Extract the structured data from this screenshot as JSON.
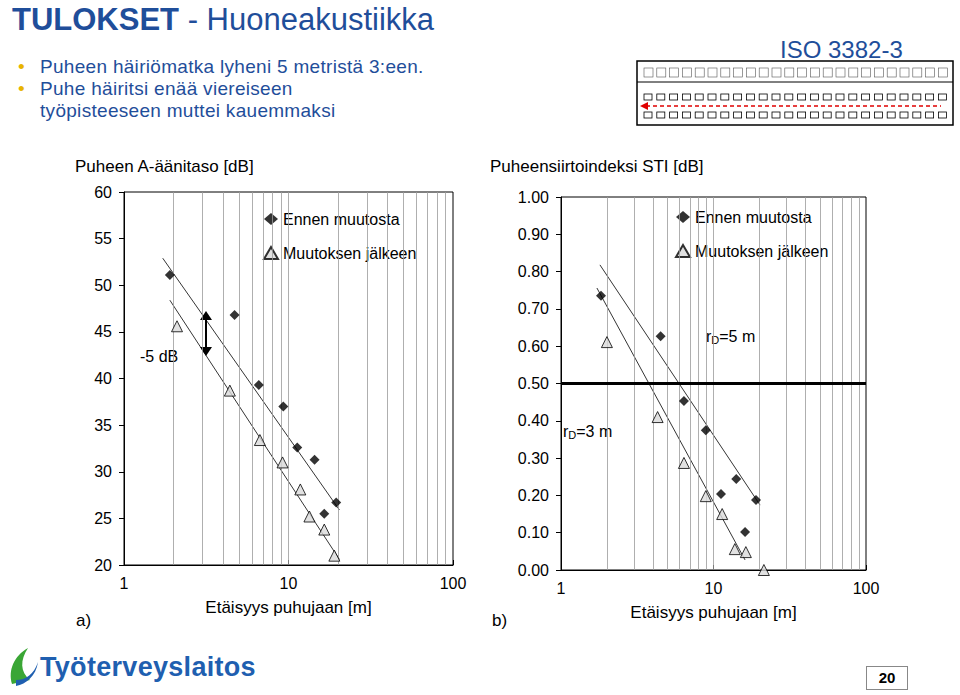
{
  "slide": {
    "title": "TULOKSET",
    "subtitle": "- Huoneakustiikka",
    "bullets": [
      "Puheen häiriömatka lyheni 5 metristä 3:een.",
      "Puhe häiritsi enää viereiseen työpisteeseen muttei kauemmaksi"
    ],
    "standard": "ISO 3382-3",
    "logo": "Työterveyslaitos",
    "page": "20"
  },
  "chart_data": [
    {
      "type": "scatter",
      "panel_label": "a)",
      "xlabel": "Etäisyys puhujaan [m]",
      "ylabel": "Puheen A-äänitaso [dB]",
      "log": "x",
      "xlim": [
        1,
        100
      ],
      "xticks": [
        1,
        10,
        100
      ],
      "ylim": [
        20,
        60
      ],
      "yticks": [
        20,
        25,
        30,
        35,
        40,
        45,
        50,
        55,
        60
      ],
      "grid": true,
      "legend": "upper right",
      "annotations": [
        {
          "text": "-5 dB"
        }
      ],
      "series": [
        {
          "name": "Ennen muutosta",
          "color": "#000000",
          "marker": "diamond",
          "x": [
            1.9,
            4.7,
            6.6,
            9.3,
            11.3,
            14.4,
            16.5,
            19.5
          ],
          "values": [
            51.1,
            46.8,
            39.3,
            37.0,
            32.6,
            31.3,
            25.5,
            26.7
          ],
          "fit_line": {
            "x": [
              1.72,
              20.4
            ],
            "values": [
              52.9,
              25.9
            ]
          }
        },
        {
          "name": "Muutoksen jälkeen",
          "color": "#d9d9d9",
          "marker": "triangle",
          "x": [
            2.1,
            4.4,
            6.7,
            9.2,
            11.8,
            13.4,
            16.5,
            19.0
          ],
          "values": [
            45.6,
            38.7,
            33.4,
            31.0,
            28.1,
            25.2,
            23.8,
            21.0
          ],
          "fit_line": {
            "x": [
              1.9,
              20.4
            ],
            "values": [
              48.4,
              20.6
            ]
          }
        }
      ]
    },
    {
      "type": "scatter",
      "panel_label": "b)",
      "xlabel": "Etäisyys puhujaan [m]",
      "ylabel": "Puheensiirtoindeksi STI [dB]",
      "log": "x",
      "xlim": [
        1,
        100
      ],
      "xticks": [
        1,
        10,
        100
      ],
      "ylim": [
        0,
        1
      ],
      "yticks": [
        {
          "value": 0,
          "label": "0.00"
        },
        {
          "value": 0.1,
          "label": "0.10"
        },
        {
          "value": 0.2,
          "label": "0.20"
        },
        {
          "value": 0.3,
          "label": "0.30"
        },
        {
          "value": 0.4,
          "label": "0.40"
        },
        {
          "value": 0.5,
          "label": "0.50"
        },
        {
          "value": 0.6,
          "label": "0.60"
        },
        {
          "value": 0.7,
          "label": "0.70"
        },
        {
          "value": 0.8,
          "label": "0.80"
        },
        {
          "value": 0.9,
          "label": "0.90"
        },
        {
          "value": 1,
          "label": "1.00"
        }
      ],
      "grid": true,
      "legend": "upper right",
      "reference_line": 0.5,
      "annotations": [
        {
          "text": "r",
          "subscript": "D",
          "suffix": "=5 m"
        },
        {
          "text": "r",
          "subscript": "D",
          "suffix": "=3 m"
        }
      ],
      "series": [
        {
          "name": "Ennen muutosta",
          "color": "#000000",
          "marker": "diamond",
          "x": [
            1.83,
            4.5,
            6.4,
            8.9,
            11.2,
            14.1,
            16.1,
            19.0
          ],
          "values": [
            0.735,
            0.627,
            0.453,
            0.375,
            0.204,
            0.244,
            0.102,
            0.188
          ],
          "fit_line": {
            "x": [
              1.8,
              20.2
            ],
            "values": [
              0.818,
              0.174
            ]
          }
        },
        {
          "name": "Muutoksen jälkeen",
          "color": "#d9d9d9",
          "marker": "triangle",
          "x": [
            2.0,
            4.3,
            6.4,
            8.9,
            11.4,
            13.8,
            16.3,
            21.4
          ],
          "values": [
            0.611,
            0.41,
            0.287,
            0.198,
            0.15,
            0.056,
            0.048,
            0.0
          ],
          "fit_line": {
            "x": [
              1.72,
              16.1
            ],
            "values": [
              0.756,
              0.027
            ]
          }
        }
      ]
    }
  ]
}
